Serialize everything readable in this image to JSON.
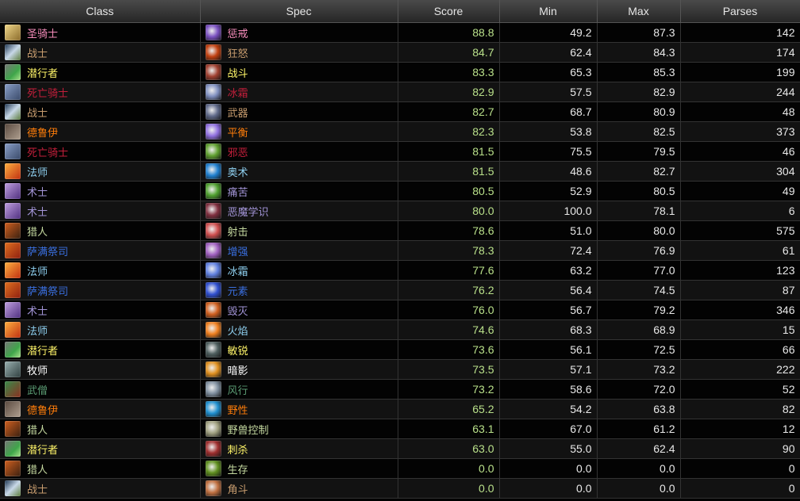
{
  "headers": {
    "class": "Class",
    "spec": "Spec",
    "score": "Score",
    "min": "Min",
    "max": "Max",
    "parses": "Parses"
  },
  "class_colors": {
    "paladin": "#F58CBA",
    "warrior": "#C79C6E",
    "rogue": "#FFF569",
    "deathknight": "#C41F3B",
    "druid": "#FF7D0A",
    "mage": "#8FD0F0",
    "warlock": "#A294D6",
    "hunter": "#C5D9A0",
    "shaman": "#3A6FE0",
    "priest": "#FFFFFF",
    "monk": "#5A9A72"
  },
  "score_color": "#B9E08A",
  "rows": [
    {
      "class": "圣骑士",
      "class_key": "paladin",
      "class_icon": "paladin-icon",
      "spec": "惩戒",
      "spec_icon": "retribution-icon",
      "score": "88.8",
      "min": "49.2",
      "max": "87.3",
      "parses": "142"
    },
    {
      "class": "战士",
      "class_key": "warrior",
      "class_icon": "warrior-icon",
      "spec": "狂怒",
      "spec_icon": "fury-icon",
      "score": "84.7",
      "min": "62.4",
      "max": "84.3",
      "parses": "174"
    },
    {
      "class": "潜行者",
      "class_key": "rogue",
      "class_icon": "rogue-icon",
      "spec": "战斗",
      "spec_icon": "combat-icon",
      "score": "83.3",
      "min": "65.3",
      "max": "85.3",
      "parses": "199"
    },
    {
      "class": "死亡骑士",
      "class_key": "deathknight",
      "class_icon": "death-knight-icon",
      "spec": "冰霜",
      "spec_icon": "frost-dk-icon",
      "score": "82.9",
      "min": "57.5",
      "max": "82.9",
      "parses": "244"
    },
    {
      "class": "战士",
      "class_key": "warrior",
      "class_icon": "warrior-icon",
      "spec": "武器",
      "spec_icon": "arms-icon",
      "score": "82.7",
      "min": "68.7",
      "max": "80.9",
      "parses": "48"
    },
    {
      "class": "德鲁伊",
      "class_key": "druid",
      "class_icon": "druid-icon",
      "spec": "平衡",
      "spec_icon": "balance-icon",
      "score": "82.3",
      "min": "53.8",
      "max": "82.5",
      "parses": "373"
    },
    {
      "class": "死亡骑士",
      "class_key": "deathknight",
      "class_icon": "death-knight-icon",
      "spec": "邪恶",
      "spec_icon": "unholy-icon",
      "score": "81.5",
      "min": "75.5",
      "max": "79.5",
      "parses": "46"
    },
    {
      "class": "法师",
      "class_key": "mage",
      "class_icon": "mage-icon",
      "spec": "奥术",
      "spec_icon": "arcane-icon",
      "score": "81.5",
      "min": "48.6",
      "max": "82.7",
      "parses": "304"
    },
    {
      "class": "术士",
      "class_key": "warlock",
      "class_icon": "warlock-icon",
      "spec": "痛苦",
      "spec_icon": "affliction-icon",
      "score": "80.5",
      "min": "52.9",
      "max": "80.5",
      "parses": "49"
    },
    {
      "class": "术士",
      "class_key": "warlock",
      "class_icon": "warlock-icon",
      "spec": "恶魔学识",
      "spec_icon": "demonology-icon",
      "score": "80.0",
      "min": "100.0",
      "max": "78.1",
      "parses": "6"
    },
    {
      "class": "猎人",
      "class_key": "hunter",
      "class_icon": "hunter-icon",
      "spec": "射击",
      "spec_icon": "marksmanship-icon",
      "score": "78.6",
      "min": "51.0",
      "max": "80.0",
      "parses": "575"
    },
    {
      "class": "萨满祭司",
      "class_key": "shaman",
      "class_icon": "shaman-icon",
      "spec": "增强",
      "spec_icon": "enhancement-icon",
      "score": "78.3",
      "min": "72.4",
      "max": "76.9",
      "parses": "61"
    },
    {
      "class": "法师",
      "class_key": "mage",
      "class_icon": "mage-icon",
      "spec": "冰霜",
      "spec_icon": "frost-mage-icon",
      "score": "77.6",
      "min": "63.2",
      "max": "77.0",
      "parses": "123"
    },
    {
      "class": "萨满祭司",
      "class_key": "shaman",
      "class_icon": "shaman-icon",
      "spec": "元素",
      "spec_icon": "elemental-icon",
      "score": "76.2",
      "min": "56.4",
      "max": "74.5",
      "parses": "87"
    },
    {
      "class": "术士",
      "class_key": "warlock",
      "class_icon": "warlock-icon",
      "spec": "毁灭",
      "spec_icon": "destruction-icon",
      "score": "76.0",
      "min": "56.7",
      "max": "79.2",
      "parses": "346"
    },
    {
      "class": "法师",
      "class_key": "mage",
      "class_icon": "mage-icon",
      "spec": "火焰",
      "spec_icon": "fire-icon",
      "score": "74.6",
      "min": "68.3",
      "max": "68.9",
      "parses": "15"
    },
    {
      "class": "潜行者",
      "class_key": "rogue",
      "class_icon": "rogue-icon",
      "spec": "敏锐",
      "spec_icon": "subtlety-icon",
      "score": "73.6",
      "min": "56.1",
      "max": "72.5",
      "parses": "66"
    },
    {
      "class": "牧师",
      "class_key": "priest",
      "class_icon": "priest-icon",
      "spec": "暗影",
      "spec_icon": "shadow-icon",
      "score": "73.5",
      "min": "57.1",
      "max": "73.2",
      "parses": "222"
    },
    {
      "class": "武僧",
      "class_key": "monk",
      "class_icon": "monk-icon",
      "spec": "风行",
      "spec_icon": "windwalker-icon",
      "score": "73.2",
      "min": "58.6",
      "max": "72.0",
      "parses": "52"
    },
    {
      "class": "德鲁伊",
      "class_key": "druid",
      "class_icon": "druid-icon",
      "spec": "野性",
      "spec_icon": "feral-icon",
      "score": "65.2",
      "min": "54.2",
      "max": "63.8",
      "parses": "82"
    },
    {
      "class": "猎人",
      "class_key": "hunter",
      "class_icon": "hunter-icon",
      "spec": "野兽控制",
      "spec_icon": "beast-mastery-icon",
      "score": "63.1",
      "min": "67.0",
      "max": "61.2",
      "parses": "12"
    },
    {
      "class": "潜行者",
      "class_key": "rogue",
      "class_icon": "rogue-icon",
      "spec": "刺杀",
      "spec_icon": "assassination-icon",
      "score": "63.0",
      "min": "55.0",
      "max": "62.4",
      "parses": "90"
    },
    {
      "class": "猎人",
      "class_key": "hunter",
      "class_icon": "hunter-icon",
      "spec": "生存",
      "spec_icon": "survival-icon",
      "score": "0.0",
      "min": "0.0",
      "max": "0.0",
      "parses": "0"
    },
    {
      "class": "战士",
      "class_key": "warrior",
      "class_icon": "warrior-icon",
      "spec": "角斗",
      "spec_icon": "gladiator-icon",
      "score": "0.0",
      "min": "0.0",
      "max": "0.0",
      "parses": "0"
    }
  ]
}
